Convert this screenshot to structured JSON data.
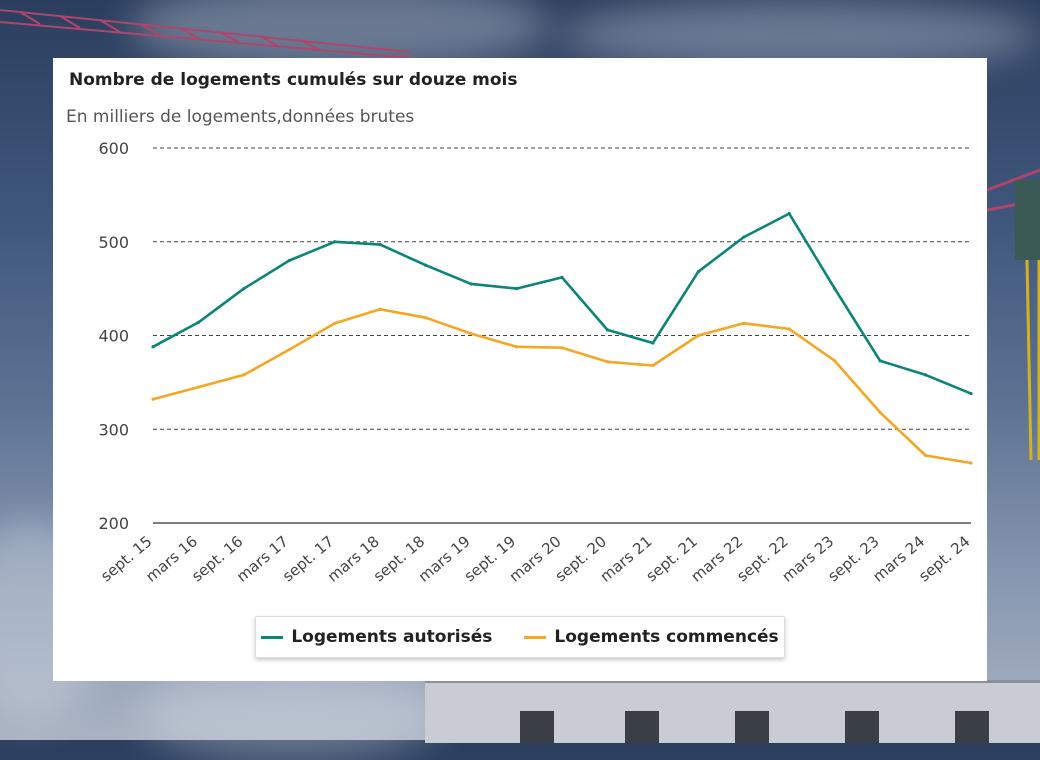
{
  "chart_data": {
    "type": "line",
    "title": "Nombre de logements cumulés sur douze mois",
    "subtitle": "En milliers de logements,données brutes",
    "xlabel": "",
    "ylabel": "",
    "ylim": [
      200,
      600
    ],
    "yticks": [
      200,
      300,
      400,
      500,
      600
    ],
    "grid": true,
    "legend_position": "bottom",
    "x": [
      "sept. 15",
      "mars 16",
      "sept. 16",
      "mars 17",
      "sept. 17",
      "mars 18",
      "sept. 18",
      "mars 19",
      "sept. 19",
      "mars 20",
      "sept. 20",
      "mars 21",
      "sept. 21",
      "mars 22",
      "sept. 22",
      "mars 23",
      "sept. 23",
      "mars 24",
      "sept. 24"
    ],
    "series": [
      {
        "name": "Logements autorisés",
        "color": "#0b8578",
        "values": [
          388,
          414,
          450,
          480,
          500,
          497,
          475,
          455,
          450,
          462,
          406,
          392,
          468,
          505,
          530,
          450,
          373,
          358,
          338
        ]
      },
      {
        "name": "Logements commencés",
        "color": "#f5a623",
        "values": [
          332,
          345,
          358,
          385,
          413,
          428,
          419,
          402,
          388,
          387,
          372,
          368,
          400,
          413,
          407,
          373,
          318,
          272,
          264
        ]
      }
    ]
  }
}
